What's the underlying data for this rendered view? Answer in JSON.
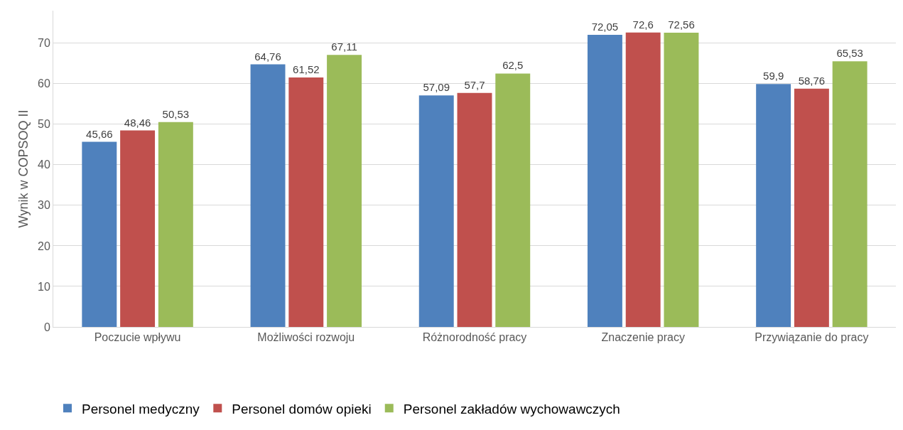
{
  "chart_data": {
    "type": "bar",
    "ylabel": "Wynik w COPSOQ II",
    "categories": [
      "Poczucie wpływu",
      "Możliwości rozwoju",
      "Różnorodność pracy",
      "Znaczenie pracy",
      "Przywiązanie do pracy"
    ],
    "series": [
      {
        "name": "Personel medyczny",
        "color": "#4f81bd",
        "values": [
          45.66,
          64.76,
          57.09,
          72.05,
          59.9
        ],
        "value_labels": [
          "45,66",
          "64,76",
          "57,09",
          "72,05",
          "59,9"
        ]
      },
      {
        "name": "Personel domów opieki",
        "color": "#c0504d",
        "values": [
          48.46,
          61.52,
          57.7,
          72.6,
          58.76
        ],
        "value_labels": [
          "48,46",
          "61,52",
          "57,7",
          "72,6",
          "58,76"
        ]
      },
      {
        "name": "Personel zakładów wychowawczych",
        "color": "#9bbb59",
        "values": [
          50.53,
          67.11,
          62.5,
          72.56,
          65.53
        ],
        "value_labels": [
          "50,53",
          "67,11",
          "62,5",
          "72,56",
          "65,53"
        ]
      }
    ],
    "ylim": [
      0,
      78
    ],
    "yticks": [
      0,
      10,
      20,
      30,
      40,
      50,
      60,
      70
    ],
    "grid": "y",
    "legend": "bottom left"
  }
}
